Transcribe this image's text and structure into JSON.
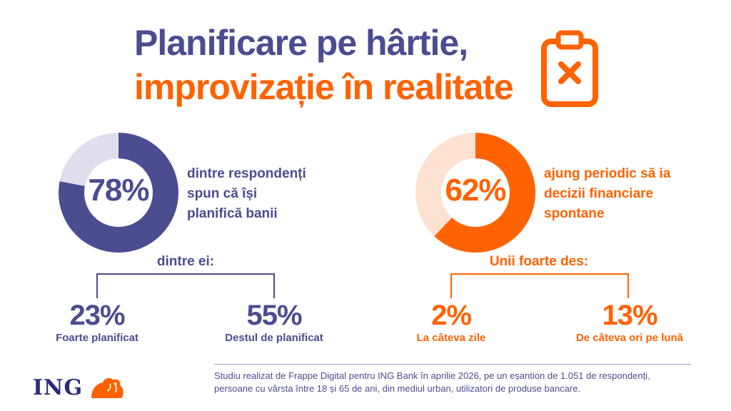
{
  "title": {
    "line1": "Planificare pe hârtie,",
    "line2": "improvizație în realitate"
  },
  "colors": {
    "purple": "#4c4c91",
    "purple_light": "#dedeed",
    "orange": "#ff6200",
    "orange_light": "#fde2d2"
  },
  "icon": "clipboard-x-icon",
  "left": {
    "percent_label": "78%",
    "percent_value": 78,
    "description": [
      "dintre respondenți",
      "spun că își",
      "planifică banii"
    ],
    "sub_heading": "dintre ei:",
    "items": [
      {
        "value": "23%",
        "label": "Foarte planificat"
      },
      {
        "value": "55%",
        "label": "Destul de planificat"
      }
    ]
  },
  "right": {
    "percent_label": "62%",
    "percent_value": 62,
    "description": [
      "ajung periodic să ia",
      "decizii financiare",
      "spontane"
    ],
    "sub_heading": "Unii foarte des:",
    "items": [
      {
        "value": "2%",
        "label": "La câteva zile"
      },
      {
        "value": "13%",
        "label": "De câteva ori pe lună"
      }
    ]
  },
  "footnote": {
    "line1": "Studiu realizat de Frappe Digital pentru ING Bank în aprilie 2026, pe un eșantion de 1.051 de respondenți,",
    "line2": "persoane cu vârsta între 18 și 65 de ani, din mediul urban, utilizatori de produse bancare."
  },
  "logo": {
    "text": "ING"
  }
}
